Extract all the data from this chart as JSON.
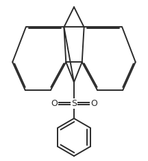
{
  "bg_color": "#ffffff",
  "line_color": "#2a2a2a",
  "line_width": 1.4,
  "dbo": 0.018,
  "figsize": [
    2.16,
    2.34
  ],
  "dpi": 100,
  "xlim": [
    -1.1,
    1.1
  ],
  "ylim": [
    -1.25,
    1.1
  ]
}
